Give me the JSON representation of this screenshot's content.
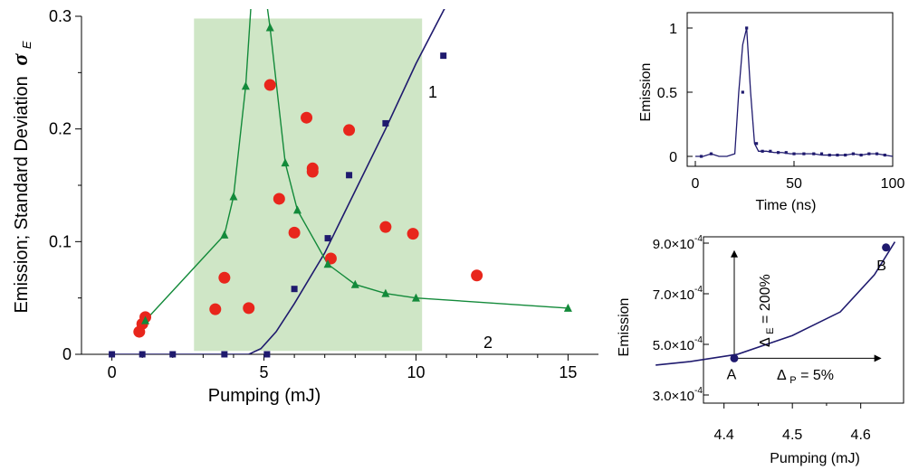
{
  "chart_data": [
    {
      "type": "scatter",
      "panel": "main",
      "xlabel": "Pumping (mJ)",
      "ylabel": "Emission; Standard Deviation",
      "ylabel_symbol": "σ",
      "ylabel_subscript": "E",
      "xlim": [
        -1,
        16
      ],
      "ylim": [
        0,
        0.3
      ],
      "xticks": [
        0,
        5,
        10,
        15
      ],
      "xtick_labels": [
        "0",
        "5",
        "10",
        "15"
      ],
      "yticks": [
        0,
        0.1,
        0.2,
        0.3
      ],
      "ytick_labels": [
        "0",
        "0.1",
        "0.2",
        "0.3"
      ],
      "shaded_region": {
        "x": [
          2.7,
          10.2
        ],
        "y": [
          0.003,
          0.298
        ],
        "color": "#cfe6c6"
      },
      "colors": {
        "line1": "#1f1a6e",
        "line2": "#138a3a",
        "dots": "#e8261c"
      },
      "series": [
        {
          "name": "1",
          "marker": "square",
          "x": [
            0,
            1,
            2,
            3.7,
            5.1,
            6,
            7.1,
            7.8,
            9,
            10.9
          ],
          "y": [
            0,
            0,
            0,
            0,
            0,
            0.058,
            0.103,
            0.159,
            0.205,
            0.265
          ],
          "fit_x": [
            0,
            4.5,
            4.9,
            5.4,
            6,
            7,
            8,
            9,
            10,
            11
          ],
          "fit_y": [
            0,
            0,
            0.005,
            0.02,
            0.045,
            0.09,
            0.145,
            0.2,
            0.258,
            0.31
          ]
        },
        {
          "name": "2",
          "marker": "triangle",
          "x": [
            1.1,
            3.7,
            4.0,
            4.4,
            5.2,
            5.7,
            6.1,
            7.1,
            8.0,
            9.0,
            10.0,
            15.0
          ],
          "y": [
            0.03,
            0.106,
            0.14,
            0.238,
            0.29,
            0.17,
            0.128,
            0.08,
            0.062,
            0.054,
            0.05,
            0.041
          ],
          "curve_x": [
            1.1,
            3.7,
            4.0,
            4.4,
            4.6,
            4.85,
            5.05,
            5.2,
            5.7,
            6.1,
            7.1,
            8.0,
            9.0,
            10.0,
            15.0
          ],
          "curve_y": [
            0.03,
            0.106,
            0.14,
            0.238,
            0.32,
            0.32,
            0.32,
            0.29,
            0.17,
            0.128,
            0.08,
            0.062,
            0.054,
            0.05,
            0.041
          ]
        },
        {
          "marker": "circle",
          "x": [
            0.9,
            1.0,
            1.1,
            3.4,
            3.7,
            4.5,
            5.2,
            5.5,
            6.0,
            6.4,
            6.6,
            6.6,
            7.2,
            7.8,
            9.0,
            9.9,
            12.0
          ],
          "y": [
            0.02,
            0.027,
            0.033,
            0.04,
            0.068,
            0.041,
            0.239,
            0.138,
            0.108,
            0.21,
            0.165,
            0.162,
            0.085,
            0.199,
            0.113,
            0.107,
            0.07
          ]
        }
      ],
      "series_labels": [
        "1",
        "2"
      ]
    },
    {
      "type": "line",
      "panel": "top-right",
      "xlabel": "Time (ns)",
      "ylabel": "Emission",
      "xlim": [
        0,
        100
      ],
      "ylim": [
        0,
        1
      ],
      "xticks": [
        0,
        50,
        100
      ],
      "xtick_labels": [
        "0",
        "50",
        "100"
      ],
      "yticks": [
        0,
        0.5,
        1
      ],
      "ytick_labels": [
        "0",
        "0.5",
        "1"
      ],
      "x": [
        0,
        4,
        8,
        12,
        16,
        20,
        22,
        24,
        26,
        28,
        30,
        32,
        36,
        40,
        44,
        48,
        52,
        56,
        60,
        64,
        68,
        72,
        76,
        80,
        84,
        88,
        92,
        96,
        100
      ],
      "y": [
        0,
        0,
        0.02,
        0,
        0,
        0.02,
        0.5,
        0.87,
        1.0,
        0.5,
        0.1,
        0.04,
        0.04,
        0.03,
        0.03,
        0.02,
        0.02,
        0.02,
        0.02,
        0.01,
        0.01,
        0.01,
        0.01,
        0.02,
        0.01,
        0.02,
        0.02,
        0.01,
        0
      ],
      "points_x": [
        3,
        8,
        24,
        26,
        31,
        34,
        38,
        42,
        46,
        50,
        55,
        60,
        64,
        68,
        72,
        76,
        80,
        84,
        88,
        92,
        96
      ],
      "points_y": [
        0,
        0.02,
        0.5,
        1.0,
        0.1,
        0.04,
        0.04,
        0.03,
        0.03,
        0.02,
        0.02,
        0.02,
        0.02,
        0.01,
        0.01,
        0.01,
        0.02,
        0.01,
        0.02,
        0.02,
        0.01
      ]
    },
    {
      "type": "line",
      "panel": "bottom-right",
      "xlabel": "Pumping (mJ)",
      "ylabel": "Emission",
      "xlim": [
        4.3,
        4.65
      ],
      "ylim": [
        0.0003,
        0.0009
      ],
      "xticks": [
        4.4,
        4.5,
        4.6
      ],
      "xtick_labels": [
        "4.4",
        "4.5",
        "4.6"
      ],
      "yticks": [
        0.0003,
        0.0005,
        0.0007,
        0.0009
      ],
      "ytick_labels": [
        "3.0×10",
        "5.0×10",
        "7.0×10",
        "9.0×10"
      ],
      "ytick_exponent": "-4",
      "x": [
        4.3,
        4.35,
        4.42,
        4.5,
        4.57,
        4.62,
        4.65
      ],
      "y": [
        0.000418,
        0.000432,
        0.000461,
        0.000535,
        0.000628,
        0.000775,
        0.000905
      ],
      "points": [
        {
          "label": "A",
          "x": 4.415,
          "y": 0.000445
        },
        {
          "label": "B",
          "x": 4.637,
          "y": 0.000883
        }
      ],
      "annotations": {
        "delta_e": "Δ",
        "delta_e_sub": "E",
        "delta_e_val": "= 200%",
        "delta_p": "Δ",
        "delta_p_sub": "P",
        "delta_p_val": " = 5%"
      }
    }
  ]
}
